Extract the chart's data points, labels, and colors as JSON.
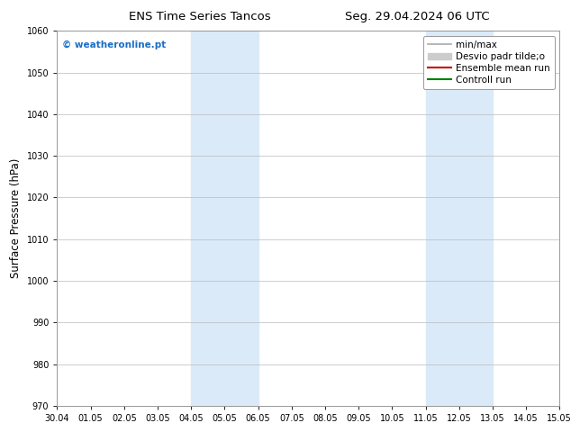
{
  "title_left": "ENS Time Series Tancos",
  "title_right": "Seg. 29.04.2024 06 UTC",
  "ylabel": "Surface Pressure (hPa)",
  "ylim": [
    970,
    1060
  ],
  "yticks": [
    970,
    980,
    990,
    1000,
    1010,
    1020,
    1030,
    1040,
    1050,
    1060
  ],
  "xtick_labels": [
    "30.04",
    "01.05",
    "02.05",
    "03.05",
    "04.05",
    "05.05",
    "06.05",
    "07.05",
    "08.05",
    "09.05",
    "10.05",
    "11.05",
    "12.05",
    "13.05",
    "14.05",
    "15.05"
  ],
  "bg_color": "#ffffff",
  "plot_bg_color": "#ffffff",
  "shaded_bands": [
    {
      "xstart": 4,
      "xend": 6
    },
    {
      "xstart": 11,
      "xend": 13
    }
  ],
  "shade_color": "#daeaf8",
  "watermark": "© weatheronline.pt",
  "watermark_color": "#1a6ec7",
  "legend_items": [
    {
      "label": "min/max",
      "color": "#aaaaaa",
      "lw": 1.2,
      "style": "-",
      "type": "line"
    },
    {
      "label": "Desvio padr tilde;o",
      "color": "#cccccc",
      "lw": 8,
      "style": "-",
      "type": "patch"
    },
    {
      "label": "Ensemble mean run",
      "color": "#cc0000",
      "lw": 1.5,
      "style": "-",
      "type": "line"
    },
    {
      "label": "Controll run",
      "color": "#008000",
      "lw": 1.5,
      "style": "-",
      "type": "line"
    }
  ],
  "tick_label_fontsize": 7,
  "axis_label_fontsize": 8.5,
  "title_fontsize": 9.5,
  "watermark_fontsize": 7.5,
  "legend_fontsize": 7.5,
  "grid_color": "#bbbbbb",
  "num_xticks": 16,
  "figsize": [
    6.34,
    4.9
  ],
  "dpi": 100
}
